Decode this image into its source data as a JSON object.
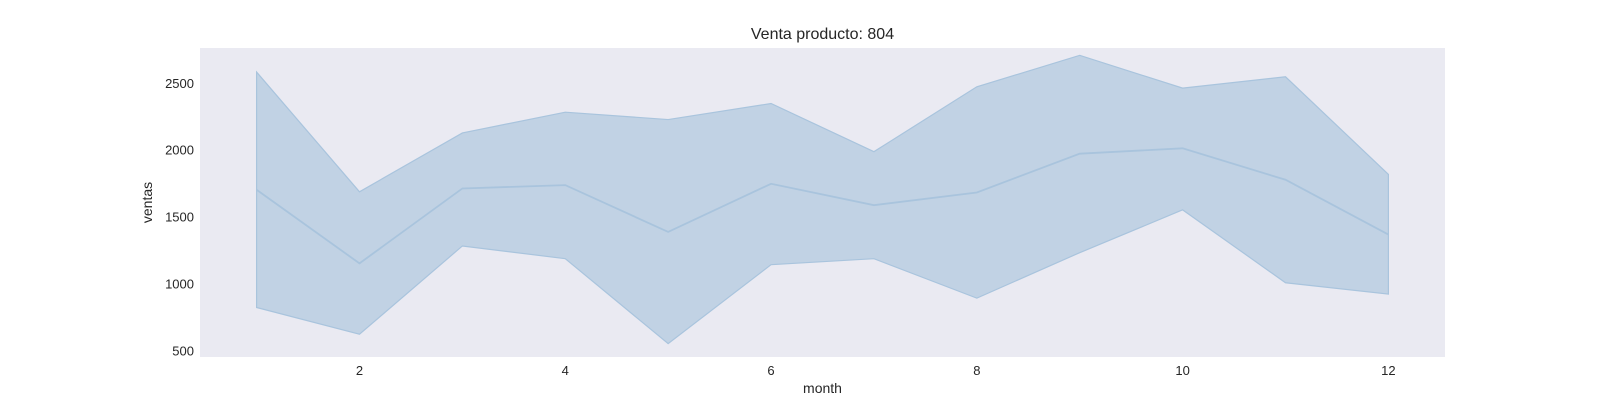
{
  "chart_data": {
    "type": "line",
    "title": "Venta producto: 804",
    "xlabel": "month",
    "ylabel": "ventas",
    "xlim": [
      0.45,
      12.55
    ],
    "ylim": [
      450,
      2760
    ],
    "xticks": [
      2,
      4,
      6,
      8,
      10,
      12
    ],
    "yticks": [
      500,
      1000,
      1500,
      2000,
      2500
    ],
    "grid": false,
    "colors": {
      "background": "#eaeaf2",
      "line": "#a9c4dd",
      "band": "#c1d2e4"
    },
    "series": [
      {
        "name": "ventas",
        "x": [
          1,
          2,
          3,
          4,
          5,
          6,
          7,
          8,
          9,
          10,
          11,
          12
        ],
        "mean": [
          1700,
          1150,
          1710,
          1735,
          1385,
          1745,
          1585,
          1680,
          1970,
          2010,
          1775,
          1365
        ],
        "upper": [
          2580,
          1685,
          2125,
          2280,
          2225,
          2345,
          1985,
          2470,
          2705,
          2460,
          2545,
          1815
        ],
        "lower": [
          820,
          620,
          1280,
          1185,
          550,
          1140,
          1185,
          890,
          1230,
          1550,
          1005,
          920
        ]
      }
    ]
  }
}
